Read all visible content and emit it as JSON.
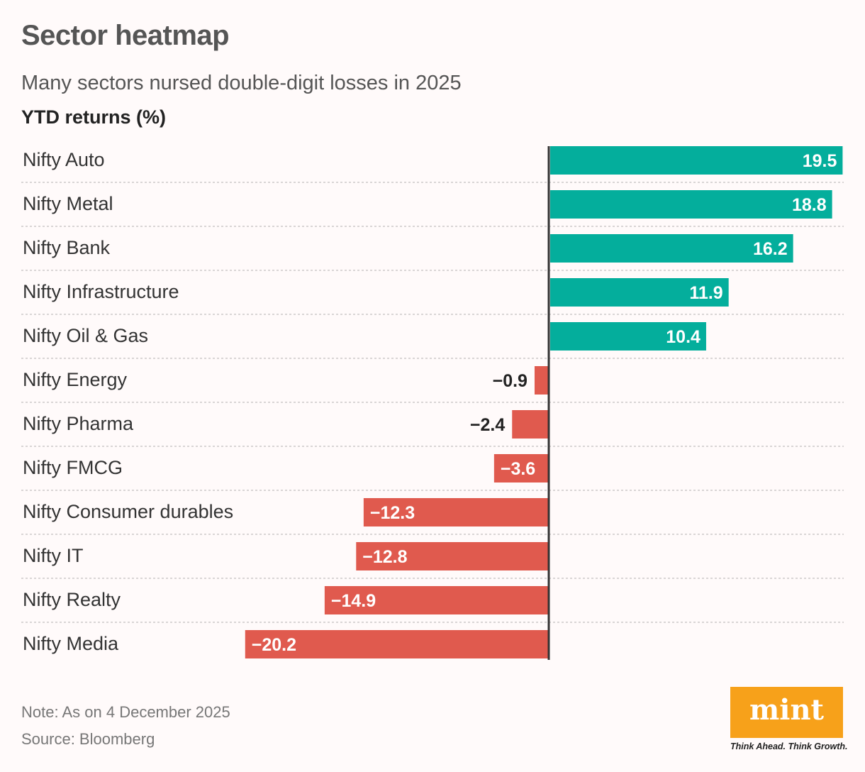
{
  "header": {
    "title": "Sector heatmap",
    "subtitle": "Many sectors nursed double-digit losses in 2025",
    "ylabel": "YTD returns (%)"
  },
  "footer": {
    "note": "Note: As on 4 December 2025",
    "source": "Source: Bloomberg",
    "logo_text": "mint",
    "tagline": "Think Ahead. Think Growth."
  },
  "colors": {
    "positive": "#04ae9c",
    "negative": "#e05a4e",
    "axis": "#333333",
    "background": "#fffafa"
  },
  "chart_data": {
    "type": "bar",
    "orientation": "horizontal",
    "title": "Sector heatmap",
    "subtitle": "Many sectors nursed double-digit losses in 2025",
    "ylabel": "YTD returns (%)",
    "categories": [
      "Nifty Auto",
      "Nifty Metal",
      "Nifty Bank",
      "Nifty Infrastructure",
      "Nifty Oil & Gas",
      "Nifty Energy",
      "Nifty Pharma",
      "Nifty FMCG",
      "Nifty Consumer durables",
      "Nifty IT",
      "Nifty Realty",
      "Nifty Media"
    ],
    "values": [
      19.5,
      18.8,
      16.2,
      11.9,
      10.4,
      -0.9,
      -2.4,
      -3.6,
      -12.3,
      -12.8,
      -14.9,
      -20.2
    ],
    "data_labels": [
      "19.5",
      "18.8",
      "16.2",
      "11.9",
      "10.4",
      "−0.9",
      "−2.4",
      "−3.6",
      "−12.3",
      "−12.8",
      "−14.9",
      "−20.2"
    ],
    "xlim": [
      -21.6,
      19.5
    ],
    "grid": false,
    "legend": "none"
  }
}
